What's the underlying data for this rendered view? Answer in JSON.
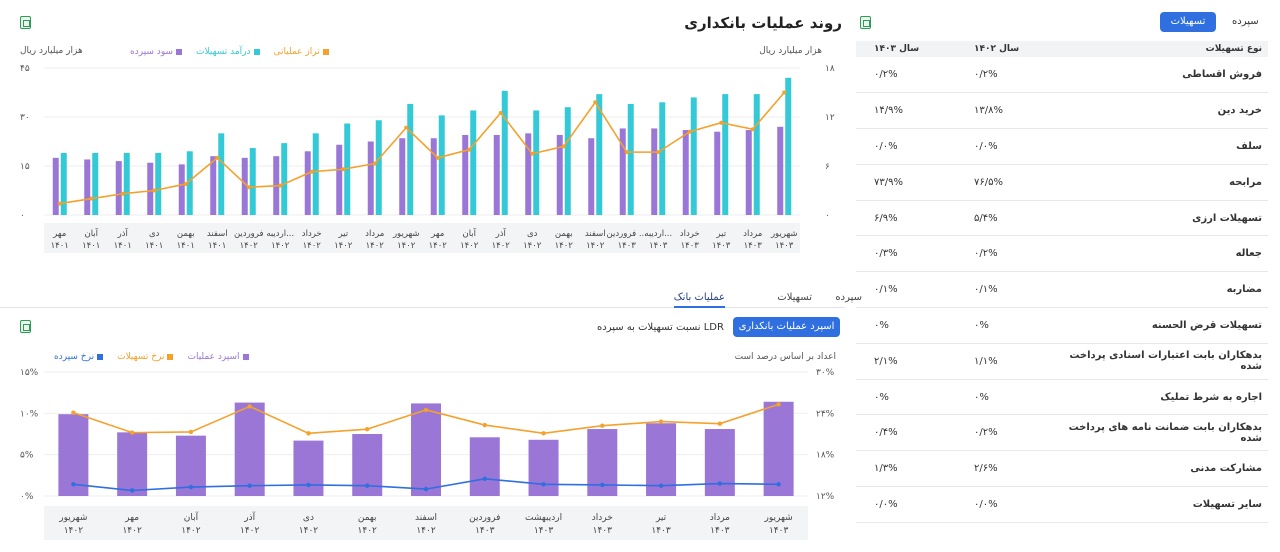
{
  "top_chart": {
    "title": "روند عملیات بانکداری",
    "left_unit": "هزار میلیارد ریال",
    "right_unit": "هزار میلیارد ریال",
    "legend": [
      {
        "label": "تراز عملیاتی",
        "color": "#f5a12b"
      },
      {
        "label": "درآمد تسهیلات",
        "color": "#33c9d6"
      },
      {
        "label": "سود سپرده",
        "color": "#9a76d6"
      }
    ],
    "left_ticks": [
      "۰",
      "۱۵",
      "۳۰",
      "۴۵"
    ],
    "right_ticks": [
      "۰",
      "۶",
      "۱۲",
      "۱۸"
    ]
  },
  "tabs": {
    "items": [
      "سپرده",
      "تسهیلات",
      "عملیات بانک"
    ],
    "active": "عملیات بانک"
  },
  "bottom_chart": {
    "button": "اسپرد عملیات بانکداری",
    "subtitle": "نسبت تسهیلات به سپرده LDR",
    "note": "اعداد بر اساس درصد است",
    "legend": [
      {
        "label": "اسپرد عملیات",
        "color": "#9a76d6"
      },
      {
        "label": "نرخ تسهیلات",
        "color": "#f5a12b"
      },
      {
        "label": "نرخ سپرده",
        "color": "#2f6fe0"
      }
    ],
    "left_ticks": [
      "۰%",
      "۵%",
      "۱۰%",
      "۱۵%"
    ],
    "right_ticks": [
      "۱۲%",
      "۱۸%",
      "۲۴%",
      "۳۰%"
    ]
  },
  "table": {
    "toggle": [
      "تسهیلات",
      "سپرده"
    ],
    "active_toggle": "تسهیلات",
    "headers": [
      "نوع تسهیلات",
      "سال ۱۴۰۲",
      "سال ۱۴۰۳"
    ],
    "rows": [
      [
        "فروش اقساطی",
        "۰/۲%",
        "۰/۲%"
      ],
      [
        "خرید دین",
        "۱۳/۸%",
        "۱۴/۹%"
      ],
      [
        "سلف",
        "۰/۰%",
        "۰/۰%"
      ],
      [
        "مرابحه",
        "۷۶/۵%",
        "۷۳/۹%"
      ],
      [
        "تسهیلات ارزی",
        "۵/۴%",
        "۶/۹%"
      ],
      [
        "جعاله",
        "۰/۲%",
        "۰/۳%"
      ],
      [
        "مضاربه",
        "۰/۱%",
        "۰/۱%"
      ],
      [
        "تسهیلات قرض الحسنه",
        "۰%",
        "۰%"
      ],
      [
        "بدهکاران بابت اعتبارات اسنادی پرداخت شده",
        "۱/۱%",
        "۲/۱%"
      ],
      [
        "اجاره به شرط تملیک",
        "۰%",
        "۰%"
      ],
      [
        "بدهکاران بابت ضمانت نامه های پرداخت شده",
        "۰/۲%",
        "۰/۴%"
      ],
      [
        "مشارکت مدنی",
        "۲/۶%",
        "۱/۳%"
      ],
      [
        "سایر تسهیلات",
        "۰/۰%",
        "۰/۰%"
      ]
    ]
  },
  "chart_data": [
    {
      "type": "bar",
      "title": "روند عملیات بانکداری",
      "ylabel": "هزار میلیارد ریال",
      "y2label": "هزار میلیارد ریال",
      "ylim": [
        0,
        45
      ],
      "y2lim": [
        0,
        18
      ],
      "categories": [
        "مهر ۱۴۰۱",
        "آبان ۱۴۰۱",
        "آذر ۱۴۰۱",
        "دی ۱۴۰۱",
        "بهمن ۱۴۰۱",
        "اسفند ۱۴۰۱",
        "فروردین ۱۴۰۲",
        "اردیبهشت ۱۴۰۲",
        "خرداد ۱۴۰۲",
        "تیر ۱۴۰۲",
        "مرداد ۱۴۰۲",
        "شهریور ۱۴۰۲",
        "مهر ۱۴۰۲",
        "آبان ۱۴۰۲",
        "آذر ۱۴۰۲",
        "دی ۱۴۰۲",
        "بهمن ۱۴۰۲",
        "اسفند ۱۴۰۲",
        "فروردین ۱۴۰۳",
        "اردیبهشت ۱۴۰۳",
        "خرداد ۱۴۰۳",
        "تیر ۱۴۰۳",
        "مرداد ۱۴۰۳",
        "شهریور ۱۴۰۳"
      ],
      "category_labels": [
        [
          "مهر",
          "۱۴۰۱"
        ],
        [
          "آبان",
          "۱۴۰۱"
        ],
        [
          "آذر",
          "۱۴۰۱"
        ],
        [
          "دی",
          "۱۴۰۱"
        ],
        [
          "بهمن",
          "۱۴۰۱"
        ],
        [
          "اسفند",
          "۱۴۰۱"
        ],
        [
          "فروردین",
          "۱۴۰۲"
        ],
        [
          "اردیبه...",
          "۱۴۰۲"
        ],
        [
          "خرداد",
          "۱۴۰۲"
        ],
        [
          "تیر",
          "۱۴۰۲"
        ],
        [
          "مرداد",
          "۱۴۰۲"
        ],
        [
          "شهریور",
          "۱۴۰۲"
        ],
        [
          "مهر",
          "۱۴۰۲"
        ],
        [
          "آبان",
          "۱۴۰۲"
        ],
        [
          "آذر",
          "۱۴۰۲"
        ],
        [
          "دی",
          "۱۴۰۲"
        ],
        [
          "بهمن",
          "۱۴۰۲"
        ],
        [
          "اسفند",
          "۱۴۰۲"
        ],
        [
          "فروردین ...",
          "۱۴۰۳"
        ],
        [
          "اردیبه...",
          "۱۴۰۳"
        ],
        [
          "خرداد",
          "۱۴۰۳"
        ],
        [
          "تیر",
          "۱۴۰۳"
        ],
        [
          "مرداد",
          "۱۴۰۳"
        ],
        [
          "شهریور",
          "۱۴۰۳"
        ]
      ],
      "series": [
        {
          "name": "سود سپرده",
          "type": "bar",
          "axis": "left",
          "color": "#9a76d6",
          "values": [
            17.5,
            17,
            16.5,
            16,
            15.5,
            18,
            17.5,
            18,
            19.5,
            21.5,
            22.5,
            23.5,
            23.5,
            24.5,
            24.5,
            25,
            24.5,
            23.5,
            26.5,
            26.5,
            26,
            25.5,
            26,
            27
          ]
        },
        {
          "name": "درآمد تسهیلات",
          "type": "bar",
          "axis": "left",
          "color": "#33c9d6",
          "values": [
            19,
            19,
            19,
            19,
            19.5,
            25,
            20.5,
            22,
            25,
            28,
            29,
            34,
            30.5,
            32,
            38,
            32,
            33,
            37,
            34,
            34.5,
            36,
            37,
            37,
            42
          ]
        },
        {
          "name": "تراز عملیاتی",
          "type": "line",
          "axis": "right",
          "color": "#f5a12b",
          "values": [
            1.4,
            2,
            2.6,
            3,
            3.8,
            7,
            3.4,
            3.6,
            5.3,
            5.6,
            6.3,
            10.7,
            7,
            8,
            12.5,
            7.5,
            8.4,
            13.8,
            7.7,
            7.7,
            10.2,
            11.3,
            10.5,
            15
          ]
        }
      ]
    },
    {
      "type": "bar",
      "title": "اسپرد عملیات بانکداری",
      "ylim": [
        0,
        15
      ],
      "y2lim": [
        12,
        30
      ],
      "categories": [
        "شهریور ۱۴۰۲",
        "مهر ۱۴۰۲",
        "آبان ۱۴۰۲",
        "آذر ۱۴۰۲",
        "دی ۱۴۰۲",
        "بهمن ۱۴۰۲",
        "اسفند ۱۴۰۲",
        "فروردین ۱۴۰۳",
        "اردیبهشت ۱۴۰۳",
        "خرداد ۱۴۰۳",
        "تیر ۱۴۰۳",
        "مرداد ۱۴۰۳",
        "شهریور ۱۴۰۳"
      ],
      "category_labels": [
        [
          "شهریور",
          "۱۴۰۲"
        ],
        [
          "مهر",
          "۱۴۰۲"
        ],
        [
          "آبان",
          "۱۴۰۲"
        ],
        [
          "آذر",
          "۱۴۰۲"
        ],
        [
          "دی",
          "۱۴۰۲"
        ],
        [
          "بهمن",
          "۱۴۰۲"
        ],
        [
          "اسفند",
          "۱۴۰۲"
        ],
        [
          "فروردین",
          "۱۴۰۳"
        ],
        [
          "اردیبهشت",
          "۱۴۰۳"
        ],
        [
          "خرداد",
          "۱۴۰۳"
        ],
        [
          "تیر",
          "۱۴۰۳"
        ],
        [
          "مرداد",
          "۱۴۰۳"
        ],
        [
          "شهریور",
          "۱۴۰۳"
        ]
      ],
      "series": [
        {
          "name": "اسپرد عملیات",
          "type": "bar",
          "axis": "left",
          "color": "#9a76d6",
          "values": [
            9.9,
            7.7,
            7.3,
            11.3,
            6.7,
            7.5,
            11.2,
            7.1,
            6.8,
            8.1,
            8.8,
            8.1,
            11.4
          ]
        },
        {
          "name": "نرخ تسهیلات",
          "type": "line",
          "axis": "right",
          "color": "#f5a12b",
          "values": [
            24.1,
            21.2,
            21.3,
            25,
            21.1,
            21.7,
            24.5,
            22.3,
            21.1,
            22.2,
            22.8,
            22.5,
            25.3
          ]
        },
        {
          "name": "نرخ سپرده",
          "type": "line",
          "axis": "right",
          "color": "#2f6fe0",
          "values": [
            13.7,
            12.8,
            13.3,
            13.5,
            13.6,
            13.5,
            13,
            14.5,
            13.7,
            13.6,
            13.5,
            13.8,
            13.7
          ]
        }
      ]
    }
  ]
}
